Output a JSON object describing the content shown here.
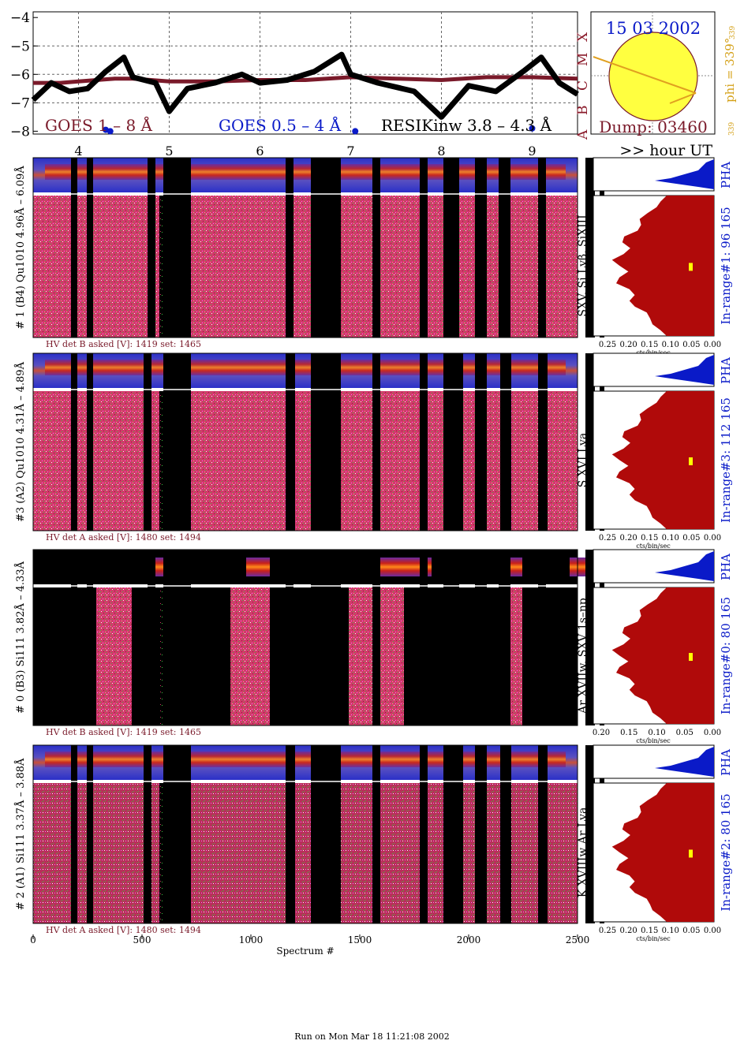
{
  "date": "15 03 2002",
  "dump": "Dump: 03460",
  "phi_label": "phi = 339°",
  "phi_sub": "339",
  "phi_small": "339",
  "flare_classes": [
    "A",
    "B",
    "C",
    "M",
    "X"
  ],
  "goes": {
    "label_1_8": "GOES 1 – 8 Å",
    "label_05_4": "GOES 0.5 – 4 Å",
    "label_resik": "RESIKinw 3.8 – 4.3 Å",
    "y_ticks": [
      "−4",
      "−5",
      "−6",
      "−7",
      "−8"
    ]
  },
  "hour_axis": {
    "ticks": [
      "4",
      "5",
      "6",
      "7",
      "8",
      "9"
    ],
    "label": ">> hour UT"
  },
  "spectrum_axis": {
    "ticks": [
      "0",
      "500",
      "1000",
      "1500",
      "2000",
      "2500"
    ],
    "label": "Spectrum #"
  },
  "panels": [
    {
      "range_label": "# 1 (B4) Qu1010 4.96Å – 6.09Å",
      "lines_label": "SXV, Si Lyβ, SiXIII",
      "hv_note": "HV det B asked [V]:  1419 set:  1465",
      "in_range": "In-range#1:   96 165",
      "pha": "PHA",
      "x_ticks": [
        "0.25",
        "0.20",
        "0.15",
        "0.10",
        "0.05",
        "0.00"
      ],
      "x_unit": "cts/bin/sec"
    },
    {
      "range_label": "#3 (A2) Qu1010  4.31Å – 4.89Å",
      "lines_label": "S XVI Lya",
      "hv_note": "HV det A asked [V]:  1480 set:  1494",
      "in_range": "In-range#3:   112 165",
      "pha": "PHA",
      "x_ticks": [
        "0.25",
        "0.20",
        "0.15",
        "0.10",
        "0.05",
        "0.00"
      ],
      "x_unit": "cts/bin/sec"
    },
    {
      "range_label": "# 0 (B3) Si111  3.82Å – 4.33Å",
      "lines_label": "Ar XVIIw,  SXV 1s–np",
      "hv_note": "HV det B asked [V]:  1419 set:  1465",
      "in_range": "In-range#0:   80 165",
      "pha": "PHA",
      "x_ticks": [
        "0.20",
        "0.15",
        "0.10",
        "0.05",
        "0.00"
      ],
      "x_unit": "cts/bin/sec"
    },
    {
      "range_label": "# 2 (A1) Si111  3.37Å – 3.88Å",
      "lines_label": "K XVIIIw  Ar Lya",
      "hv_note": "HV det A asked [V]:  1480 set:  1494",
      "in_range": "In-range#2:   80 165",
      "pha": "PHA",
      "x_ticks": [
        "0.25",
        "0.20",
        "0.15",
        "0.10",
        "0.05",
        "0.00"
      ],
      "x_unit": "cts/bin/sec"
    }
  ],
  "footer": "Run on Mon Mar 18 11:21:08 2002",
  "chart_data": {
    "type": "line",
    "x_unit": "hour UT",
    "x_range": [
      3.5,
      9.5
    ],
    "ylim": [
      -8.1,
      -3.8
    ],
    "y_scale": "log10 flux",
    "series": [
      {
        "name": "GOES 1 – 8 Å",
        "color": "#7a1a2a",
        "x": [
          3.5,
          3.8,
          4.0,
          4.2,
          4.4,
          4.6,
          4.8,
          5.0,
          5.5,
          6.0,
          6.5,
          7.0,
          7.5,
          8.0,
          8.5,
          9.0,
          9.5
        ],
        "values": [
          -6.3,
          -6.3,
          -6.25,
          -6.2,
          -6.15,
          -6.15,
          -6.2,
          -6.25,
          -6.25,
          -6.2,
          -6.2,
          -6.1,
          -6.15,
          -6.2,
          -6.1,
          -6.1,
          -6.15
        ]
      },
      {
        "name": "RESIKinw 3.8 – 4.3 Å",
        "color": "#000000",
        "x": [
          3.5,
          3.7,
          3.9,
          4.1,
          4.3,
          4.5,
          4.6,
          4.85,
          5.0,
          5.2,
          5.5,
          5.8,
          6.0,
          6.3,
          6.6,
          6.9,
          7.0,
          7.3,
          7.7,
          8.0,
          8.3,
          8.6,
          8.9,
          9.1,
          9.3,
          9.5
        ],
        "values": [
          -6.9,
          -6.3,
          -6.6,
          -6.5,
          -5.9,
          -5.4,
          -6.1,
          -6.3,
          -7.3,
          -6.5,
          -6.3,
          -6.0,
          -6.3,
          -6.2,
          -5.9,
          -5.3,
          -6.0,
          -6.3,
          -6.6,
          -7.5,
          -6.4,
          -6.6,
          -5.9,
          -5.4,
          -6.3,
          -6.7
        ]
      },
      {
        "name": "GOES 0.5 – 4 Å",
        "color": "#0a1ac8",
        "x": [
          4.3,
          4.35,
          7.05,
          9.0
        ],
        "values": [
          -7.95,
          -8.0,
          -8.0,
          -7.9
        ]
      }
    ],
    "annotations": [
      "15 03 2002",
      "Dump: 03460",
      "phi = 339°"
    ]
  }
}
